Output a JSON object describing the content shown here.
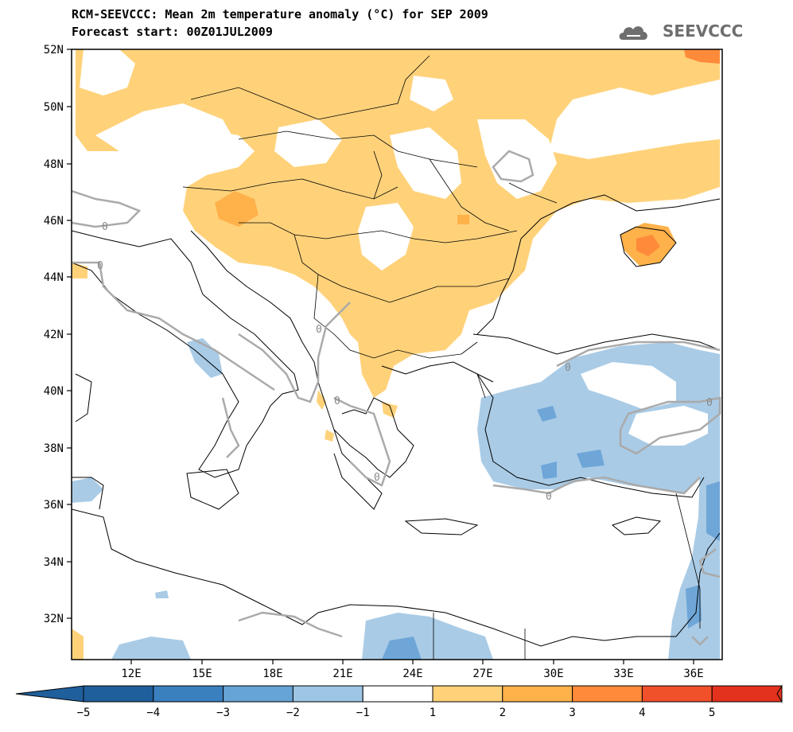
{
  "title": {
    "line1": "RCM-SEEVCCC: Mean 2m temperature anomaly (°C) for SEP 2009",
    "line2": "Forecast start: 00Z01JUL2009"
  },
  "logo": {
    "text": "SEEVCCC",
    "icon": "cloud-logo-icon"
  },
  "map": {
    "lat_ticks": [
      "52N",
      "50N",
      "48N",
      "46N",
      "44N",
      "42N",
      "40N",
      "38N",
      "36N",
      "34N",
      "32N"
    ],
    "lon_ticks": [
      "12E",
      "15E",
      "18E",
      "21E",
      "24E",
      "27E",
      "30E",
      "33E",
      "36E"
    ],
    "contour_label": "0"
  },
  "colorbar": {
    "labels": [
      "−5",
      "−4",
      "−3",
      "−2",
      "−1",
      "1",
      "2",
      "3",
      "4",
      "5"
    ],
    "colors": [
      "#1f5f9c",
      "#3a80bf",
      "#66a3d6",
      "#9cc6e4",
      "#ffffff",
      "#ffd27a",
      "#ffb14a",
      "#ff8a3a",
      "#f0502a",
      "#e3321e"
    ]
  },
  "palette": {
    "warm1": "#ffd27a",
    "warm2": "#ffb14a",
    "warm3": "#ff8a3a",
    "cool1": "#a9cbe6",
    "cool2": "#6fa6d8",
    "contour": "#aaaaaa"
  }
}
